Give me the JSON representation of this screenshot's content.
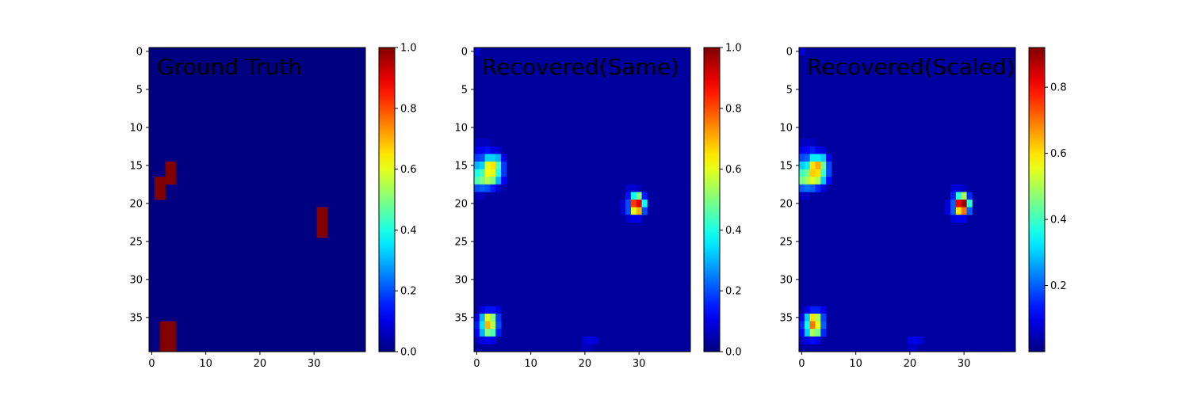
{
  "chart_data": [
    {
      "type": "heatmap",
      "title": "Ground Truth",
      "xlabel": "",
      "ylabel": "",
      "grid_shape": [
        40,
        40
      ],
      "x_ticks": [
        0,
        10,
        20,
        30
      ],
      "y_ticks": [
        0,
        5,
        10,
        15,
        20,
        25,
        30,
        35
      ],
      "colormap": "jet",
      "grid": false,
      "colorbar": {
        "min": 0.0,
        "max": 1.0,
        "ticks": [
          "0.0",
          "0.2",
          "0.4",
          "0.6",
          "0.8",
          "1.0"
        ]
      },
      "background": 0.0,
      "cells": [
        {
          "x": 3,
          "y": 15,
          "v": 1.0
        },
        {
          "x": 4,
          "y": 15,
          "v": 1.0
        },
        {
          "x": 3,
          "y": 16,
          "v": 1.0
        },
        {
          "x": 4,
          "y": 16,
          "v": 1.0
        },
        {
          "x": 1,
          "y": 17,
          "v": 1.0
        },
        {
          "x": 2,
          "y": 17,
          "v": 1.0
        },
        {
          "x": 3,
          "y": 17,
          "v": 1.0
        },
        {
          "x": 4,
          "y": 17,
          "v": 1.0
        },
        {
          "x": 1,
          "y": 18,
          "v": 1.0
        },
        {
          "x": 2,
          "y": 18,
          "v": 1.0
        },
        {
          "x": 1,
          "y": 19,
          "v": 1.0
        },
        {
          "x": 2,
          "y": 19,
          "v": 1.0
        },
        {
          "x": 31,
          "y": 21,
          "v": 1.0
        },
        {
          "x": 32,
          "y": 21,
          "v": 1.0
        },
        {
          "x": 31,
          "y": 22,
          "v": 1.0
        },
        {
          "x": 32,
          "y": 22,
          "v": 1.0
        },
        {
          "x": 31,
          "y": 23,
          "v": 1.0
        },
        {
          "x": 32,
          "y": 23,
          "v": 1.0
        },
        {
          "x": 31,
          "y": 24,
          "v": 1.0
        },
        {
          "x": 32,
          "y": 24,
          "v": 1.0
        },
        {
          "x": 2,
          "y": 36,
          "v": 1.0
        },
        {
          "x": 3,
          "y": 36,
          "v": 1.0
        },
        {
          "x": 4,
          "y": 36,
          "v": 1.0
        },
        {
          "x": 2,
          "y": 37,
          "v": 1.0
        },
        {
          "x": 3,
          "y": 37,
          "v": 1.0
        },
        {
          "x": 4,
          "y": 37,
          "v": 1.0
        },
        {
          "x": 2,
          "y": 38,
          "v": 1.0
        },
        {
          "x": 3,
          "y": 38,
          "v": 1.0
        },
        {
          "x": 4,
          "y": 38,
          "v": 1.0
        },
        {
          "x": 2,
          "y": 39,
          "v": 1.0
        },
        {
          "x": 3,
          "y": 39,
          "v": 1.0
        },
        {
          "x": 4,
          "y": 39,
          "v": 1.0
        }
      ]
    },
    {
      "type": "heatmap",
      "title": "Recovered(Same)",
      "xlabel": "",
      "ylabel": "",
      "grid_shape": [
        40,
        40
      ],
      "x_ticks": [
        0,
        10,
        20,
        30
      ],
      "y_ticks": [
        0,
        5,
        10,
        15,
        20,
        25,
        30,
        35
      ],
      "colormap": "jet",
      "grid": false,
      "colorbar": {
        "min": 0.0,
        "max": 1.0,
        "ticks": [
          "0.0",
          "0.2",
          "0.4",
          "0.6",
          "0.8",
          "1.0"
        ]
      },
      "background": 0.03,
      "cells": [
        {
          "x": 0,
          "y": 0,
          "v": 0.08
        },
        {
          "x": 0,
          "y": 12,
          "v": 0.06
        },
        {
          "x": 1,
          "y": 12,
          "v": 0.06
        },
        {
          "x": 2,
          "y": 12,
          "v": 0.06
        },
        {
          "x": 0,
          "y": 13,
          "v": 0.1
        },
        {
          "x": 1,
          "y": 13,
          "v": 0.12
        },
        {
          "x": 2,
          "y": 13,
          "v": 0.14
        },
        {
          "x": 3,
          "y": 13,
          "v": 0.1
        },
        {
          "x": 4,
          "y": 13,
          "v": 0.08
        },
        {
          "x": 0,
          "y": 14,
          "v": 0.18
        },
        {
          "x": 1,
          "y": 14,
          "v": 0.2
        },
        {
          "x": 2,
          "y": 14,
          "v": 0.33
        },
        {
          "x": 3,
          "y": 14,
          "v": 0.33
        },
        {
          "x": 4,
          "y": 14,
          "v": 0.3
        },
        {
          "x": 5,
          "y": 14,
          "v": 0.1
        },
        {
          "x": 0,
          "y": 15,
          "v": 0.3
        },
        {
          "x": 1,
          "y": 15,
          "v": 0.33
        },
        {
          "x": 2,
          "y": 15,
          "v": 0.6
        },
        {
          "x": 3,
          "y": 15,
          "v": 0.65
        },
        {
          "x": 4,
          "y": 15,
          "v": 0.45
        },
        {
          "x": 5,
          "y": 15,
          "v": 0.18
        },
        {
          "x": 0,
          "y": 16,
          "v": 0.4
        },
        {
          "x": 1,
          "y": 16,
          "v": 0.45
        },
        {
          "x": 2,
          "y": 16,
          "v": 0.62
        },
        {
          "x": 3,
          "y": 16,
          "v": 0.6
        },
        {
          "x": 4,
          "y": 16,
          "v": 0.4
        },
        {
          "x": 5,
          "y": 16,
          "v": 0.18
        },
        {
          "x": 0,
          "y": 17,
          "v": 0.45
        },
        {
          "x": 1,
          "y": 17,
          "v": 0.5
        },
        {
          "x": 2,
          "y": 17,
          "v": 0.55
        },
        {
          "x": 3,
          "y": 17,
          "v": 0.5
        },
        {
          "x": 4,
          "y": 17,
          "v": 0.3
        },
        {
          "x": 5,
          "y": 17,
          "v": 0.12
        },
        {
          "x": 0,
          "y": 18,
          "v": 0.2
        },
        {
          "x": 1,
          "y": 18,
          "v": 0.22
        },
        {
          "x": 2,
          "y": 18,
          "v": 0.2
        },
        {
          "x": 3,
          "y": 18,
          "v": 0.15
        },
        {
          "x": 4,
          "y": 18,
          "v": 0.08
        },
        {
          "x": 0,
          "y": 19,
          "v": 0.06
        },
        {
          "x": 1,
          "y": 19,
          "v": 0.06
        },
        {
          "x": 28,
          "y": 18,
          "v": 0.08
        },
        {
          "x": 29,
          "y": 18,
          "v": 0.08
        },
        {
          "x": 30,
          "y": 18,
          "v": 0.06
        },
        {
          "x": 28,
          "y": 19,
          "v": 0.14
        },
        {
          "x": 29,
          "y": 19,
          "v": 0.38
        },
        {
          "x": 30,
          "y": 19,
          "v": 0.5
        },
        {
          "x": 31,
          "y": 19,
          "v": 0.15
        },
        {
          "x": 27,
          "y": 20,
          "v": 0.08
        },
        {
          "x": 28,
          "y": 20,
          "v": 0.2
        },
        {
          "x": 29,
          "y": 20,
          "v": 0.82
        },
        {
          "x": 30,
          "y": 20,
          "v": 0.9
        },
        {
          "x": 31,
          "y": 20,
          "v": 0.38
        },
        {
          "x": 27,
          "y": 21,
          "v": 0.08
        },
        {
          "x": 28,
          "y": 21,
          "v": 0.2
        },
        {
          "x": 29,
          "y": 21,
          "v": 0.6
        },
        {
          "x": 30,
          "y": 21,
          "v": 0.7
        },
        {
          "x": 31,
          "y": 21,
          "v": 0.2
        },
        {
          "x": 28,
          "y": 22,
          "v": 0.08
        },
        {
          "x": 29,
          "y": 22,
          "v": 0.1
        },
        {
          "x": 30,
          "y": 22,
          "v": 0.1
        },
        {
          "x": 1,
          "y": 34,
          "v": 0.1
        },
        {
          "x": 2,
          "y": 34,
          "v": 0.14
        },
        {
          "x": 3,
          "y": 34,
          "v": 0.14
        },
        {
          "x": 4,
          "y": 34,
          "v": 0.1
        },
        {
          "x": 0,
          "y": 35,
          "v": 0.1
        },
        {
          "x": 1,
          "y": 35,
          "v": 0.3
        },
        {
          "x": 2,
          "y": 35,
          "v": 0.6
        },
        {
          "x": 3,
          "y": 35,
          "v": 0.5
        },
        {
          "x": 4,
          "y": 35,
          "v": 0.18
        },
        {
          "x": 0,
          "y": 36,
          "v": 0.15
        },
        {
          "x": 1,
          "y": 36,
          "v": 0.35
        },
        {
          "x": 2,
          "y": 36,
          "v": 0.7
        },
        {
          "x": 3,
          "y": 36,
          "v": 0.55
        },
        {
          "x": 4,
          "y": 36,
          "v": 0.2
        },
        {
          "x": 0,
          "y": 37,
          "v": 0.12
        },
        {
          "x": 1,
          "y": 37,
          "v": 0.3
        },
        {
          "x": 2,
          "y": 37,
          "v": 0.5
        },
        {
          "x": 3,
          "y": 37,
          "v": 0.45
        },
        {
          "x": 4,
          "y": 37,
          "v": 0.15
        },
        {
          "x": 0,
          "y": 38,
          "v": 0.06
        },
        {
          "x": 1,
          "y": 38,
          "v": 0.1
        },
        {
          "x": 2,
          "y": 38,
          "v": 0.12
        },
        {
          "x": 3,
          "y": 38,
          "v": 0.1
        },
        {
          "x": 20,
          "y": 38,
          "v": 0.08
        },
        {
          "x": 21,
          "y": 38,
          "v": 0.1
        },
        {
          "x": 22,
          "y": 38,
          "v": 0.08
        },
        {
          "x": 20,
          "y": 39,
          "v": 0.06
        },
        {
          "x": 21,
          "y": 39,
          "v": 0.06
        }
      ]
    },
    {
      "type": "heatmap",
      "title": "Recovered(Scaled)",
      "xlabel": "",
      "ylabel": "",
      "grid_shape": [
        40,
        40
      ],
      "x_ticks": [
        0,
        10,
        20,
        30
      ],
      "y_ticks": [
        0,
        5,
        10,
        15,
        20,
        25,
        30,
        35
      ],
      "colormap": "jet",
      "grid": false,
      "colorbar": {
        "min": 0.0,
        "max": 0.92,
        "ticks": [
          "0.2",
          "0.4",
          "0.6",
          "0.8"
        ]
      },
      "background": 0.03,
      "cells": [
        {
          "x": 0,
          "y": 0,
          "v": 0.08
        },
        {
          "x": 0,
          "y": 12,
          "v": 0.06
        },
        {
          "x": 1,
          "y": 12,
          "v": 0.06
        },
        {
          "x": 2,
          "y": 12,
          "v": 0.06
        },
        {
          "x": 0,
          "y": 13,
          "v": 0.1
        },
        {
          "x": 1,
          "y": 13,
          "v": 0.12
        },
        {
          "x": 2,
          "y": 13,
          "v": 0.14
        },
        {
          "x": 3,
          "y": 13,
          "v": 0.1
        },
        {
          "x": 4,
          "y": 13,
          "v": 0.08
        },
        {
          "x": 0,
          "y": 14,
          "v": 0.18
        },
        {
          "x": 1,
          "y": 14,
          "v": 0.2
        },
        {
          "x": 2,
          "y": 14,
          "v": 0.33
        },
        {
          "x": 3,
          "y": 14,
          "v": 0.33
        },
        {
          "x": 4,
          "y": 14,
          "v": 0.3
        },
        {
          "x": 5,
          "y": 14,
          "v": 0.1
        },
        {
          "x": 0,
          "y": 15,
          "v": 0.3
        },
        {
          "x": 1,
          "y": 15,
          "v": 0.33
        },
        {
          "x": 2,
          "y": 15,
          "v": 0.6
        },
        {
          "x": 3,
          "y": 15,
          "v": 0.65
        },
        {
          "x": 4,
          "y": 15,
          "v": 0.45
        },
        {
          "x": 5,
          "y": 15,
          "v": 0.18
        },
        {
          "x": 0,
          "y": 16,
          "v": 0.4
        },
        {
          "x": 1,
          "y": 16,
          "v": 0.45
        },
        {
          "x": 2,
          "y": 16,
          "v": 0.62
        },
        {
          "x": 3,
          "y": 16,
          "v": 0.6
        },
        {
          "x": 4,
          "y": 16,
          "v": 0.4
        },
        {
          "x": 5,
          "y": 16,
          "v": 0.18
        },
        {
          "x": 0,
          "y": 17,
          "v": 0.45
        },
        {
          "x": 1,
          "y": 17,
          "v": 0.5
        },
        {
          "x": 2,
          "y": 17,
          "v": 0.55
        },
        {
          "x": 3,
          "y": 17,
          "v": 0.5
        },
        {
          "x": 4,
          "y": 17,
          "v": 0.3
        },
        {
          "x": 5,
          "y": 17,
          "v": 0.12
        },
        {
          "x": 0,
          "y": 18,
          "v": 0.2
        },
        {
          "x": 1,
          "y": 18,
          "v": 0.22
        },
        {
          "x": 2,
          "y": 18,
          "v": 0.2
        },
        {
          "x": 3,
          "y": 18,
          "v": 0.15
        },
        {
          "x": 4,
          "y": 18,
          "v": 0.08
        },
        {
          "x": 0,
          "y": 19,
          "v": 0.06
        },
        {
          "x": 1,
          "y": 19,
          "v": 0.06
        },
        {
          "x": 28,
          "y": 18,
          "v": 0.08
        },
        {
          "x": 29,
          "y": 18,
          "v": 0.08
        },
        {
          "x": 30,
          "y": 18,
          "v": 0.06
        },
        {
          "x": 28,
          "y": 19,
          "v": 0.14
        },
        {
          "x": 29,
          "y": 19,
          "v": 0.38
        },
        {
          "x": 30,
          "y": 19,
          "v": 0.5
        },
        {
          "x": 31,
          "y": 19,
          "v": 0.15
        },
        {
          "x": 27,
          "y": 20,
          "v": 0.08
        },
        {
          "x": 28,
          "y": 20,
          "v": 0.2
        },
        {
          "x": 29,
          "y": 20,
          "v": 0.82
        },
        {
          "x": 30,
          "y": 20,
          "v": 0.9
        },
        {
          "x": 31,
          "y": 20,
          "v": 0.38
        },
        {
          "x": 27,
          "y": 21,
          "v": 0.08
        },
        {
          "x": 28,
          "y": 21,
          "v": 0.2
        },
        {
          "x": 29,
          "y": 21,
          "v": 0.6
        },
        {
          "x": 30,
          "y": 21,
          "v": 0.7
        },
        {
          "x": 31,
          "y": 21,
          "v": 0.2
        },
        {
          "x": 28,
          "y": 22,
          "v": 0.08
        },
        {
          "x": 29,
          "y": 22,
          "v": 0.1
        },
        {
          "x": 30,
          "y": 22,
          "v": 0.1
        },
        {
          "x": 1,
          "y": 34,
          "v": 0.1
        },
        {
          "x": 2,
          "y": 34,
          "v": 0.14
        },
        {
          "x": 3,
          "y": 34,
          "v": 0.14
        },
        {
          "x": 4,
          "y": 34,
          "v": 0.1
        },
        {
          "x": 0,
          "y": 35,
          "v": 0.1
        },
        {
          "x": 1,
          "y": 35,
          "v": 0.3
        },
        {
          "x": 2,
          "y": 35,
          "v": 0.6
        },
        {
          "x": 3,
          "y": 35,
          "v": 0.5
        },
        {
          "x": 4,
          "y": 35,
          "v": 0.18
        },
        {
          "x": 0,
          "y": 36,
          "v": 0.15
        },
        {
          "x": 1,
          "y": 36,
          "v": 0.35
        },
        {
          "x": 2,
          "y": 36,
          "v": 0.7
        },
        {
          "x": 3,
          "y": 36,
          "v": 0.55
        },
        {
          "x": 4,
          "y": 36,
          "v": 0.2
        },
        {
          "x": 0,
          "y": 37,
          "v": 0.12
        },
        {
          "x": 1,
          "y": 37,
          "v": 0.3
        },
        {
          "x": 2,
          "y": 37,
          "v": 0.5
        },
        {
          "x": 3,
          "y": 37,
          "v": 0.45
        },
        {
          "x": 4,
          "y": 37,
          "v": 0.15
        },
        {
          "x": 0,
          "y": 38,
          "v": 0.06
        },
        {
          "x": 1,
          "y": 38,
          "v": 0.1
        },
        {
          "x": 2,
          "y": 38,
          "v": 0.12
        },
        {
          "x": 3,
          "y": 38,
          "v": 0.1
        },
        {
          "x": 20,
          "y": 38,
          "v": 0.08
        },
        {
          "x": 21,
          "y": 38,
          "v": 0.1
        },
        {
          "x": 22,
          "y": 38,
          "v": 0.08
        },
        {
          "x": 20,
          "y": 39,
          "v": 0.06
        },
        {
          "x": 21,
          "y": 39,
          "v": 0.06
        }
      ]
    }
  ]
}
